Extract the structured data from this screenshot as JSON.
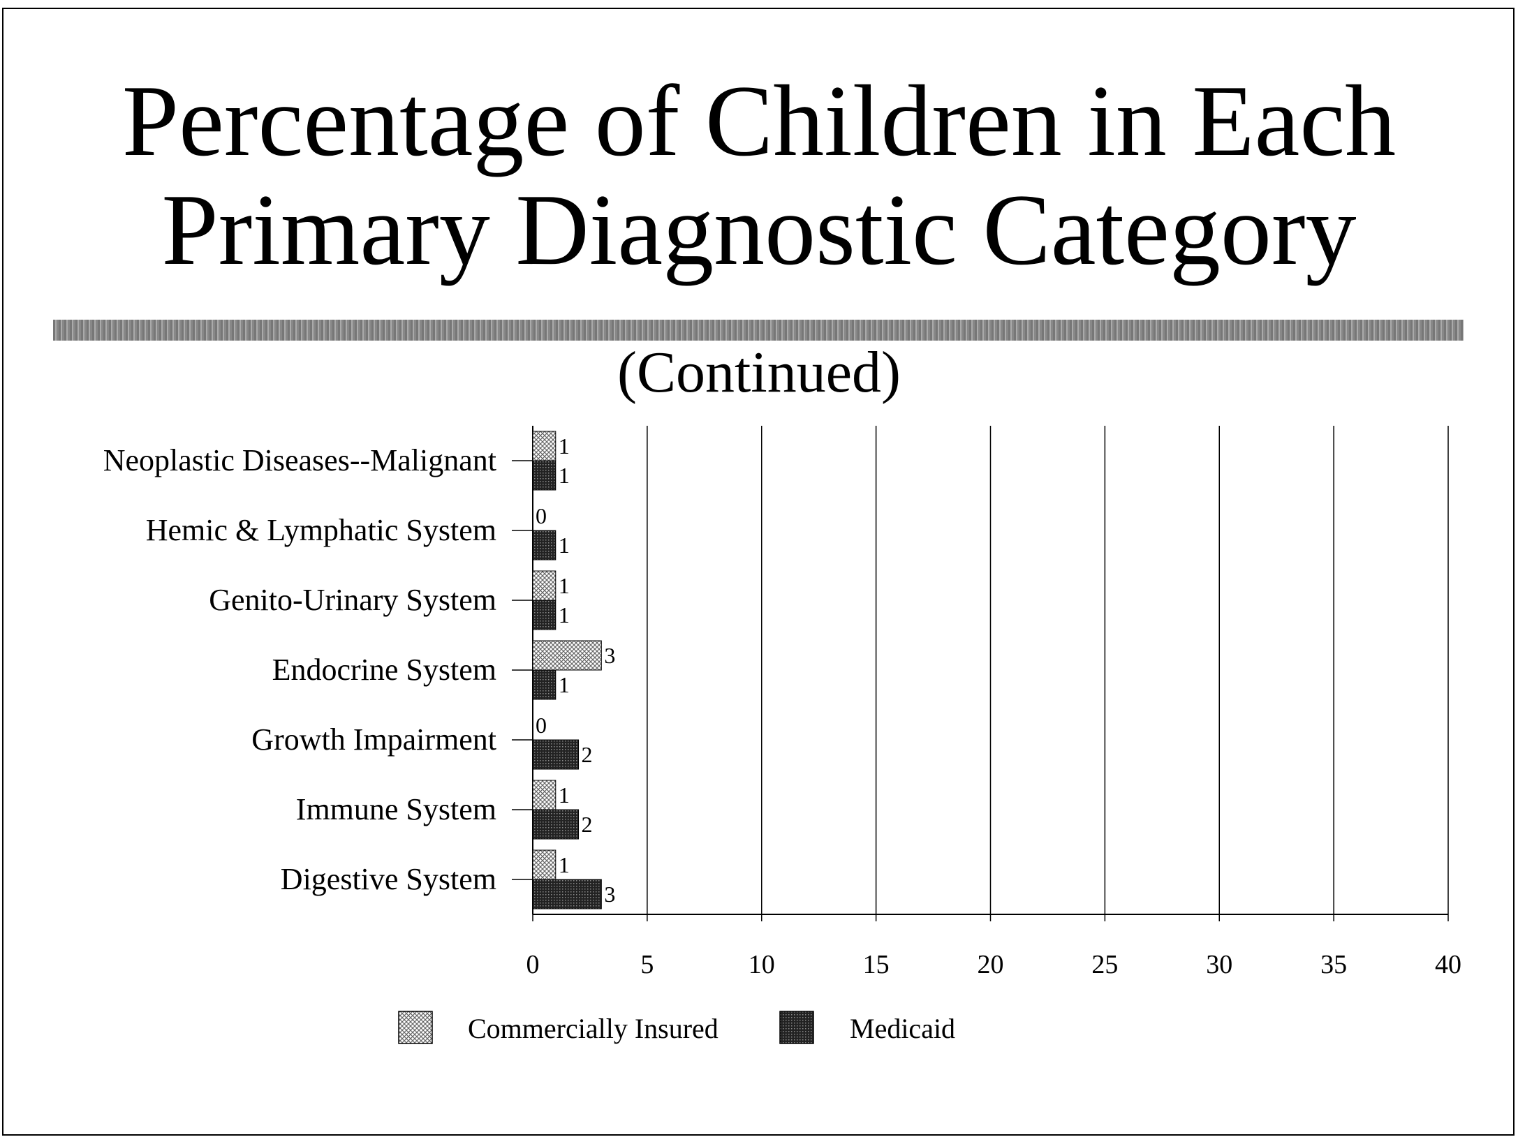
{
  "chart_data": {
    "type": "bar",
    "orientation": "horizontal",
    "title": "Percentage of Children in Each Primary Diagnostic Category",
    "title_lines": [
      "Percentage of Children in Each",
      "Primary Diagnostic Category"
    ],
    "subtitle": "(Continued)",
    "categories": [
      "Neoplastic Diseases--Malignant",
      "Hemic & Lymphatic System",
      "Genito-Urinary System",
      "Endocrine System",
      "Growth Impairment",
      "Immune System",
      "Digestive System"
    ],
    "series": [
      {
        "name": "Commercially Insured",
        "values": [
          1,
          0,
          1,
          3,
          0,
          1,
          1
        ],
        "color": "#cfcfcf"
      },
      {
        "name": "Medicaid",
        "values": [
          1,
          1,
          1,
          1,
          2,
          2,
          3
        ],
        "color": "#333333"
      }
    ],
    "xlim": [
      0,
      40
    ],
    "xticks": [
      0,
      5,
      10,
      15,
      20,
      25,
      30,
      35,
      40
    ],
    "xlabel": "",
    "ylabel": "",
    "grid": "vertical",
    "legend": "bottom-center",
    "data_labels": true
  }
}
